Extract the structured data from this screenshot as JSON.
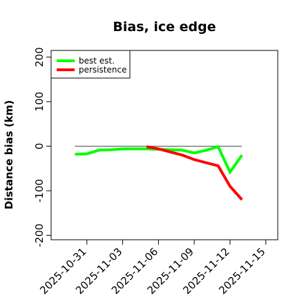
{
  "chart_data": {
    "type": "line",
    "title": "Bias, ice edge",
    "xlabel": "",
    "ylabel": "Distance bias (km)",
    "ylim": [
      -210,
      215
    ],
    "xlim": [
      "2025-10-28",
      "2025-11-16"
    ],
    "y_ticks": [
      -200,
      -100,
      0,
      100,
      200
    ],
    "x_ticks": [
      "2025-10-31",
      "2025-11-03",
      "2025-11-06",
      "2025-11-09",
      "2025-11-12",
      "2025-11-15"
    ],
    "reference_line": 0,
    "legend_position": "top-left",
    "grid": false,
    "series": [
      {
        "name": "best est.",
        "color": "#00ff00",
        "points": [
          {
            "x": "2025-10-30",
            "y": -18
          },
          {
            "x": "2025-10-31",
            "y": -17
          },
          {
            "x": "2025-11-01",
            "y": -9
          },
          {
            "x": "2025-11-02",
            "y": -8
          },
          {
            "x": "2025-11-03",
            "y": -6
          },
          {
            "x": "2025-11-04",
            "y": -6
          },
          {
            "x": "2025-11-05",
            "y": -6
          },
          {
            "x": "2025-11-06",
            "y": -7
          },
          {
            "x": "2025-11-07",
            "y": -8
          },
          {
            "x": "2025-11-08",
            "y": -9
          },
          {
            "x": "2025-11-09",
            "y": -15
          },
          {
            "x": "2025-11-10",
            "y": -9
          },
          {
            "x": "2025-11-11",
            "y": -1
          },
          {
            "x": "2025-11-12",
            "y": -58
          },
          {
            "x": "2025-11-13",
            "y": -20
          }
        ]
      },
      {
        "name": "persistence",
        "color": "#ff0000",
        "points": [
          {
            "x": "2025-11-05",
            "y": -1
          },
          {
            "x": "2025-11-06",
            "y": -6
          },
          {
            "x": "2025-11-07",
            "y": -13
          },
          {
            "x": "2025-11-08",
            "y": -20
          },
          {
            "x": "2025-11-09",
            "y": -30
          },
          {
            "x": "2025-11-10",
            "y": -37
          },
          {
            "x": "2025-11-11",
            "y": -44
          },
          {
            "x": "2025-11-12",
            "y": -90
          },
          {
            "x": "2025-11-13",
            "y": -120
          }
        ]
      }
    ]
  }
}
